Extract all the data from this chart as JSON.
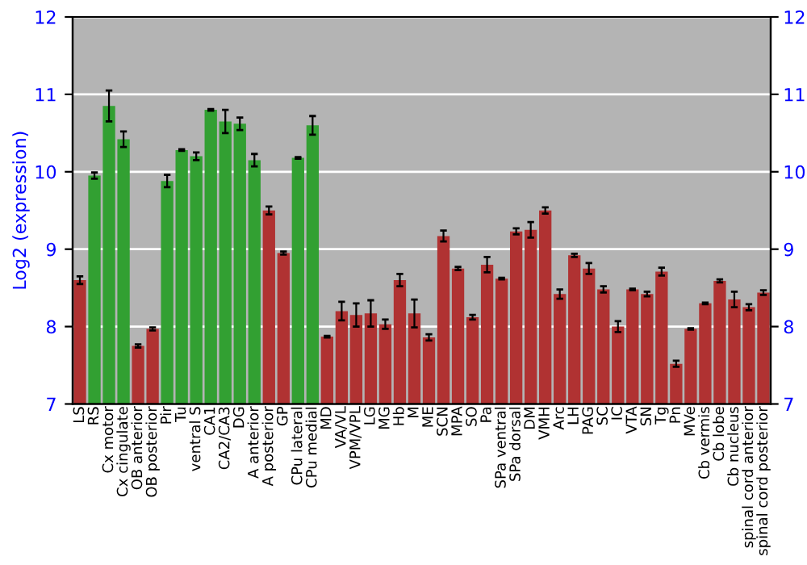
{
  "chart_data": {
    "type": "bar",
    "ylabel": "Log2 (expression)",
    "categories": [
      "LS",
      "RS",
      "Cx motor",
      "Cx cingulate",
      "OB anterior",
      "OB posterior",
      "Pir",
      "Tu",
      "ventral S",
      "CA1",
      "CA2/CA3",
      "DG",
      "A anterior",
      "A posterior",
      "GP",
      "CPu lateral",
      "CPu medial",
      "MD",
      "VA/VL",
      "VPM/VPL",
      "LG",
      "MG",
      "Hb",
      "M",
      "ME",
      "SCN",
      "MPA",
      "SO",
      "Pa",
      "SPa ventral",
      "SPa dorsal",
      "DM",
      "VMH",
      "Arc",
      "LH",
      "PAG",
      "SC",
      "IC",
      "VTA",
      "SN",
      "Tg",
      "Pn",
      "MVe",
      "Cb vermis",
      "Cb lobe",
      "Cb nucleus",
      "spinal cord anterior",
      "spinal cord posterior"
    ],
    "values": [
      8.6,
      9.95,
      10.85,
      10.42,
      7.75,
      7.97,
      9.88,
      10.28,
      10.2,
      10.8,
      10.65,
      10.62,
      10.15,
      9.5,
      8.95,
      10.18,
      10.6,
      7.87,
      8.2,
      8.15,
      8.17,
      8.03,
      8.6,
      8.17,
      7.86,
      9.17,
      8.75,
      8.12,
      8.8,
      8.62,
      9.23,
      9.25,
      9.5,
      8.42,
      8.92,
      8.75,
      8.48,
      8.0,
      8.48,
      8.42,
      8.71,
      7.52,
      7.97,
      8.3,
      8.59,
      8.35,
      8.25,
      8.44
    ],
    "errors": [
      0.05,
      0.04,
      0.2,
      0.1,
      0.02,
      0.02,
      0.08,
      0.01,
      0.05,
      0.01,
      0.15,
      0.08,
      0.08,
      0.05,
      0.02,
      0.01,
      0.12,
      0.01,
      0.12,
      0.15,
      0.17,
      0.06,
      0.08,
      0.18,
      0.04,
      0.07,
      0.02,
      0.03,
      0.1,
      0.01,
      0.04,
      0.1,
      0.04,
      0.06,
      0.02,
      0.07,
      0.04,
      0.07,
      0.01,
      0.03,
      0.05,
      0.04,
      0.01,
      0.01,
      0.02,
      0.1,
      0.04,
      0.03
    ],
    "colors": [
      "#b03232",
      "#32a032",
      "#32a032",
      "#32a032",
      "#b03232",
      "#b03232",
      "#32a032",
      "#32a032",
      "#32a032",
      "#32a032",
      "#32a032",
      "#32a032",
      "#32a032",
      "#b03232",
      "#b03232",
      "#32a032",
      "#32a032",
      "#b03232",
      "#b03232",
      "#b03232",
      "#b03232",
      "#b03232",
      "#b03232",
      "#b03232",
      "#b03232",
      "#b03232",
      "#b03232",
      "#b03232",
      "#b03232",
      "#b03232",
      "#b03232",
      "#b03232",
      "#b03232",
      "#b03232",
      "#b03232",
      "#b03232",
      "#b03232",
      "#b03232",
      "#b03232",
      "#b03232",
      "#b03232",
      "#b03232",
      "#b03232",
      "#b03232",
      "#b03232",
      "#b03232",
      "#b03232",
      "#b03232"
    ],
    "ylim": [
      7,
      12
    ],
    "yticks": [
      7,
      8,
      9,
      10,
      11,
      12
    ],
    "y2lim": [
      7,
      12
    ],
    "y2ticks": [
      7,
      8,
      9,
      10,
      11,
      12
    ],
    "grid": "y"
  }
}
